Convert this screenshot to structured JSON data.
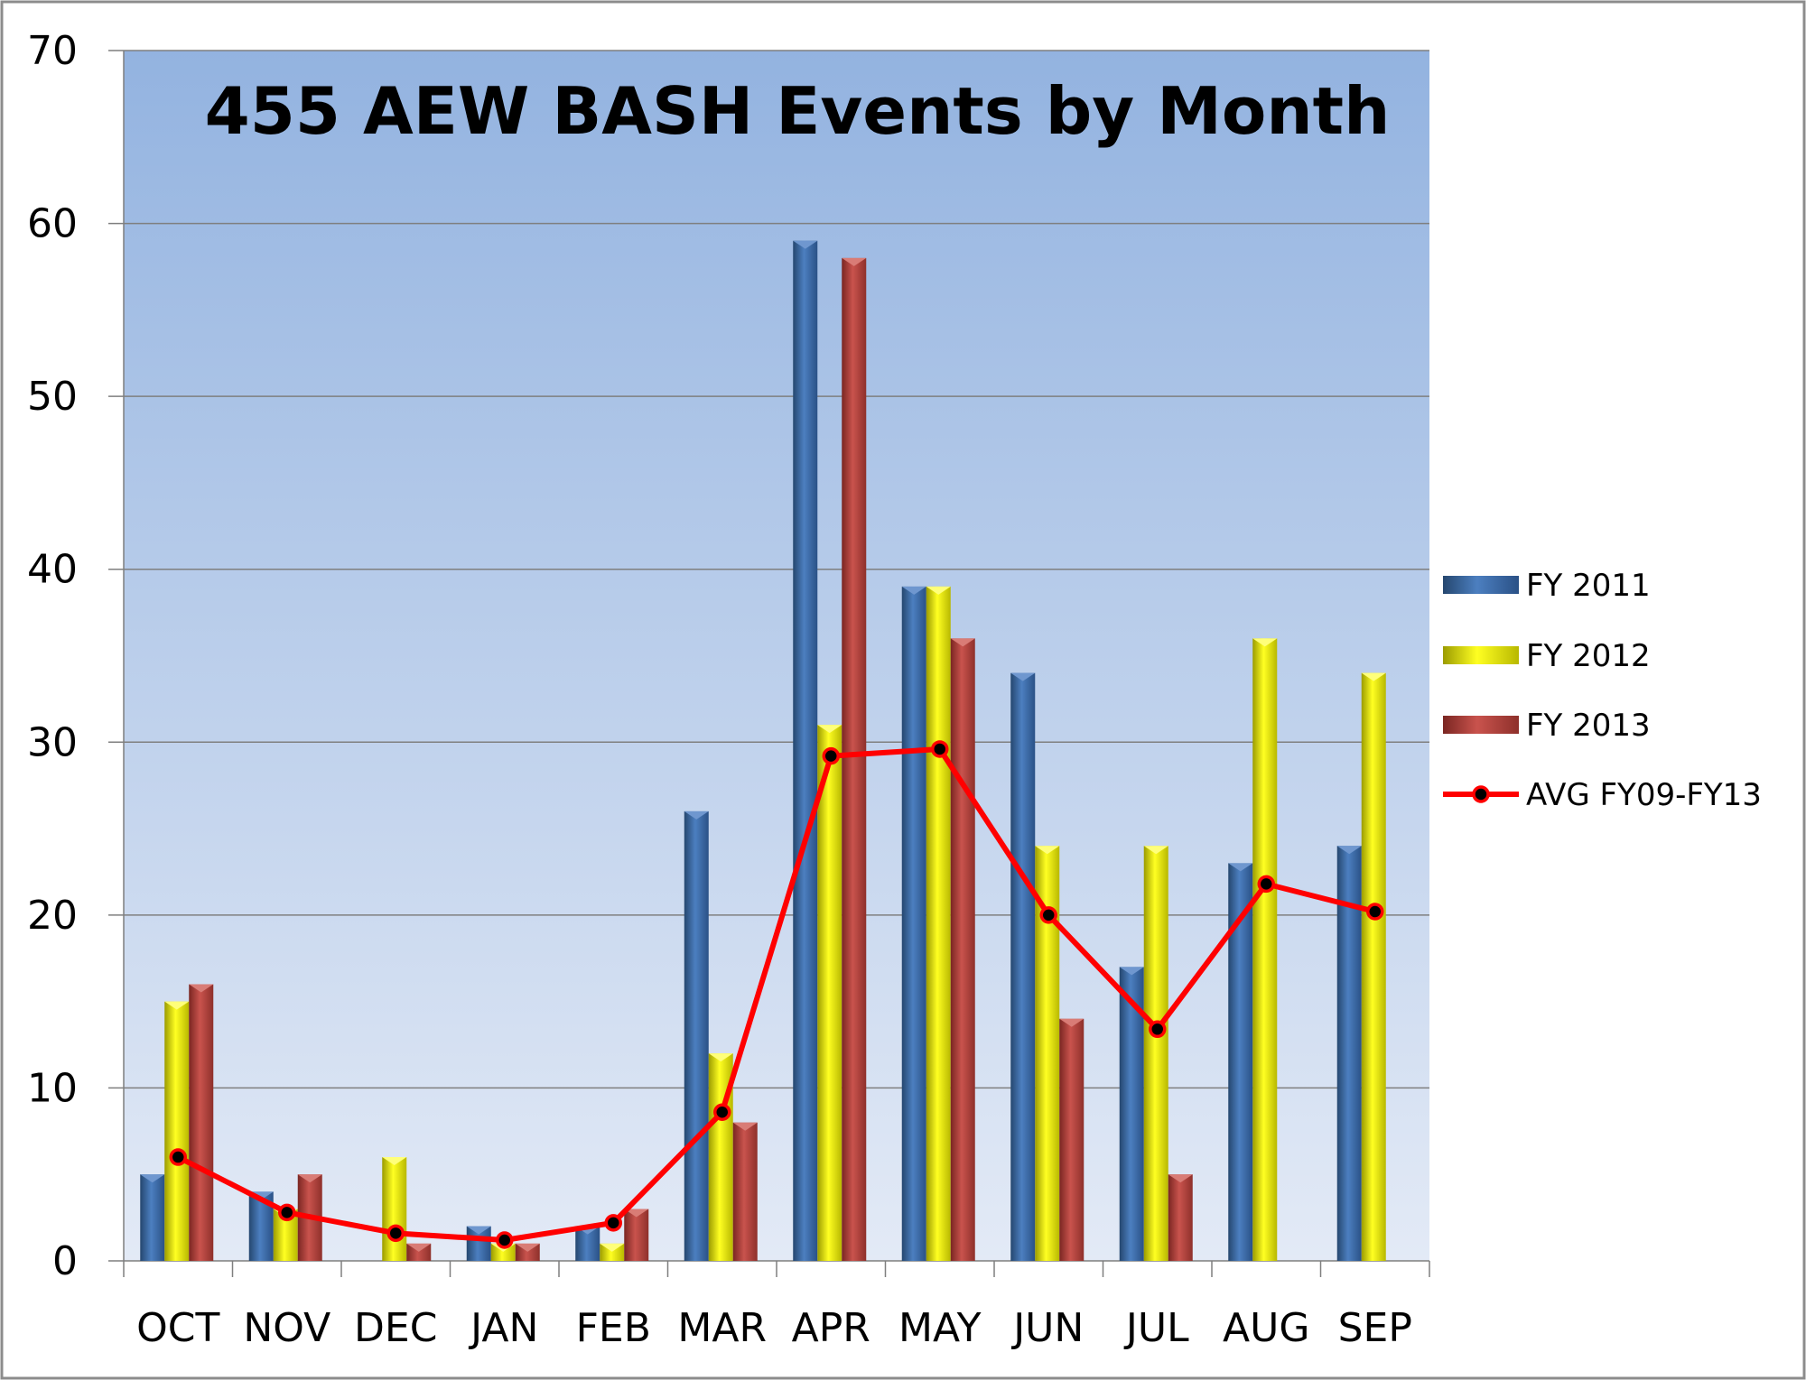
{
  "chart_data": {
    "type": "bar",
    "title": "455 AEW BASH Events by Month",
    "xlabel": "",
    "ylabel": "",
    "ylim": [
      0,
      70
    ],
    "yticks": [
      0,
      10,
      20,
      30,
      40,
      50,
      60,
      70
    ],
    "grid": true,
    "legend_position": "right",
    "categories": [
      "OCT",
      "NOV",
      "DEC",
      "JAN",
      "FEB",
      "MAR",
      "APR",
      "MAY",
      "JUN",
      "JUL",
      "AUG",
      "SEP"
    ],
    "series": [
      {
        "name": "FY 2011",
        "type": "bar",
        "color": "#3f6eaa",
        "values": [
          5,
          4,
          0,
          2,
          2,
          26,
          59,
          39,
          34,
          17,
          23,
          24
        ]
      },
      {
        "name": "FY 2012",
        "type": "bar",
        "color": "#e6e600",
        "values": [
          15,
          3,
          6,
          1,
          1,
          12,
          31,
          39,
          24,
          24,
          36,
          34
        ]
      },
      {
        "name": "FY 2013",
        "type": "bar",
        "color": "#b5443f",
        "values": [
          16,
          5,
          1,
          1,
          3,
          8,
          58,
          36,
          14,
          5,
          0,
          0
        ]
      },
      {
        "name": "AVG FY09-FY13",
        "type": "line",
        "color": "#ff0000",
        "values": [
          6.0,
          2.8,
          1.6,
          1.2,
          2.2,
          8.6,
          29.2,
          29.6,
          20.0,
          13.4,
          21.8,
          20.2
        ]
      }
    ]
  }
}
